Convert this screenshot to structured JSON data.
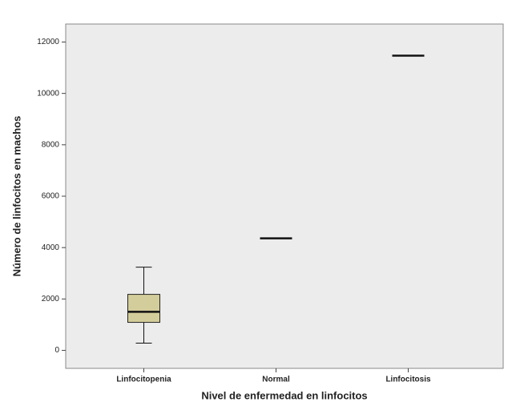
{
  "chart_data": {
    "type": "box",
    "x_label": "Nivel de enfermedad en linfocitos",
    "y_label": "Número de linfocitos en machos",
    "categories": [
      "Linfocitopenia",
      "Normal",
      "Linfocitosis"
    ],
    "min": [
      280,
      null,
      null
    ],
    "q1": [
      1090,
      null,
      null
    ],
    "median": [
      1500,
      4360,
      11470
    ],
    "q3": [
      2180,
      null,
      null
    ],
    "max": [
      3240,
      null,
      null
    ],
    "color": "#d3cd9b",
    "ylim": [
      -700,
      12700
    ],
    "yticks": [
      0,
      2000,
      4000,
      6000,
      8000,
      10000,
      12000
    ]
  }
}
